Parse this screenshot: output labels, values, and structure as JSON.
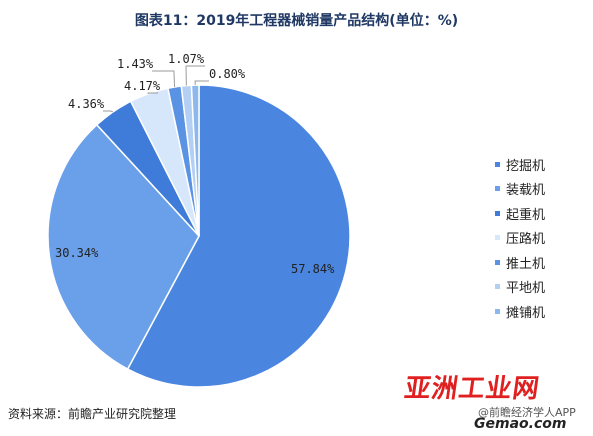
{
  "chart_data": {
    "type": "pie",
    "title": "图表11：2019年工程器械销量产品结构(单位：%)",
    "categories": [
      "挖掘机",
      "装载机",
      "起重机",
      "压路机",
      "推土机",
      "平地机",
      "摊铺机"
    ],
    "values": [
      57.84,
      30.34,
      4.36,
      4.17,
      1.43,
      1.07,
      0.8
    ],
    "value_labels": [
      "57.84%",
      "30.34%",
      "4.36%",
      "4.17%",
      "1.43%",
      "1.07%",
      "0.80%"
    ],
    "colors": [
      "#4a86e0",
      "#6aa0ea",
      "#3f7bd8",
      "#d6e6fb",
      "#5b93e4",
      "#b3cff3",
      "#8db8ee"
    ],
    "legend_position": "right"
  },
  "source": "资料来源：前瞻产业研究院整理",
  "watermark": {
    "logo": "亚洲工业网",
    "sub": "@前瞻经济学人APP",
    "url": "Gemao.com"
  }
}
